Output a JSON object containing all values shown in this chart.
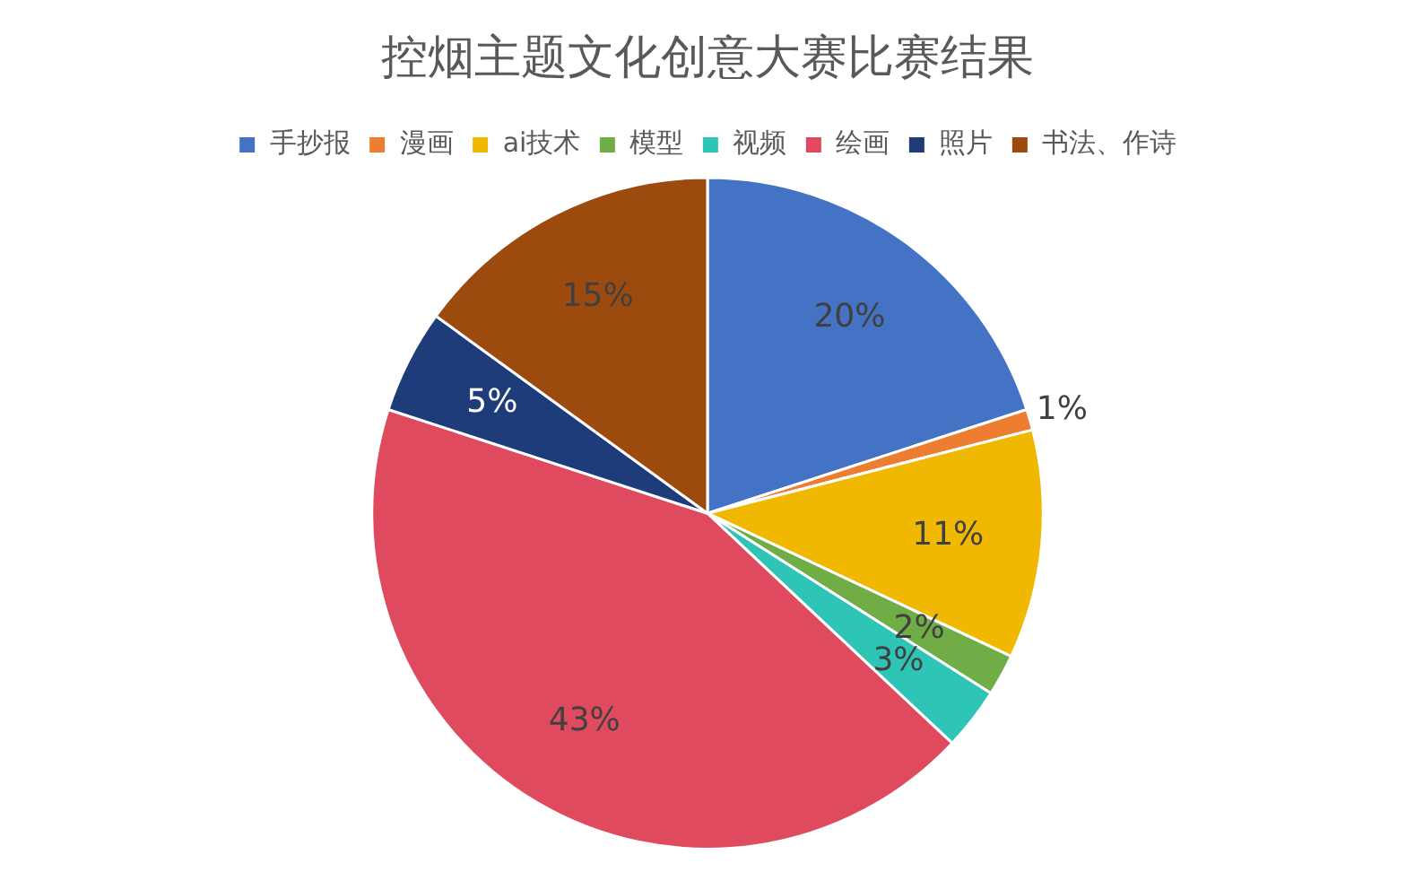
{
  "chart_data": {
    "type": "pie",
    "title": "控烟主题文化创意大赛比赛结果",
    "categories": [
      "手抄报",
      "漫画",
      "ai技术",
      "模型",
      "视频",
      "绘画",
      "照片",
      "书法、作诗"
    ],
    "values": [
      20,
      1,
      11,
      2,
      3,
      43,
      5,
      15
    ],
    "colors": [
      "#4472c4",
      "#ed7d31",
      "#f0b800",
      "#70ad47",
      "#2ec4b6",
      "#e04a5f",
      "#1f3c7a",
      "#9c4a0e"
    ],
    "value_labels": [
      "20%",
      "1%",
      "11%",
      "2%",
      "3%",
      "43%",
      "5%",
      "15%"
    ],
    "legend": "top"
  }
}
